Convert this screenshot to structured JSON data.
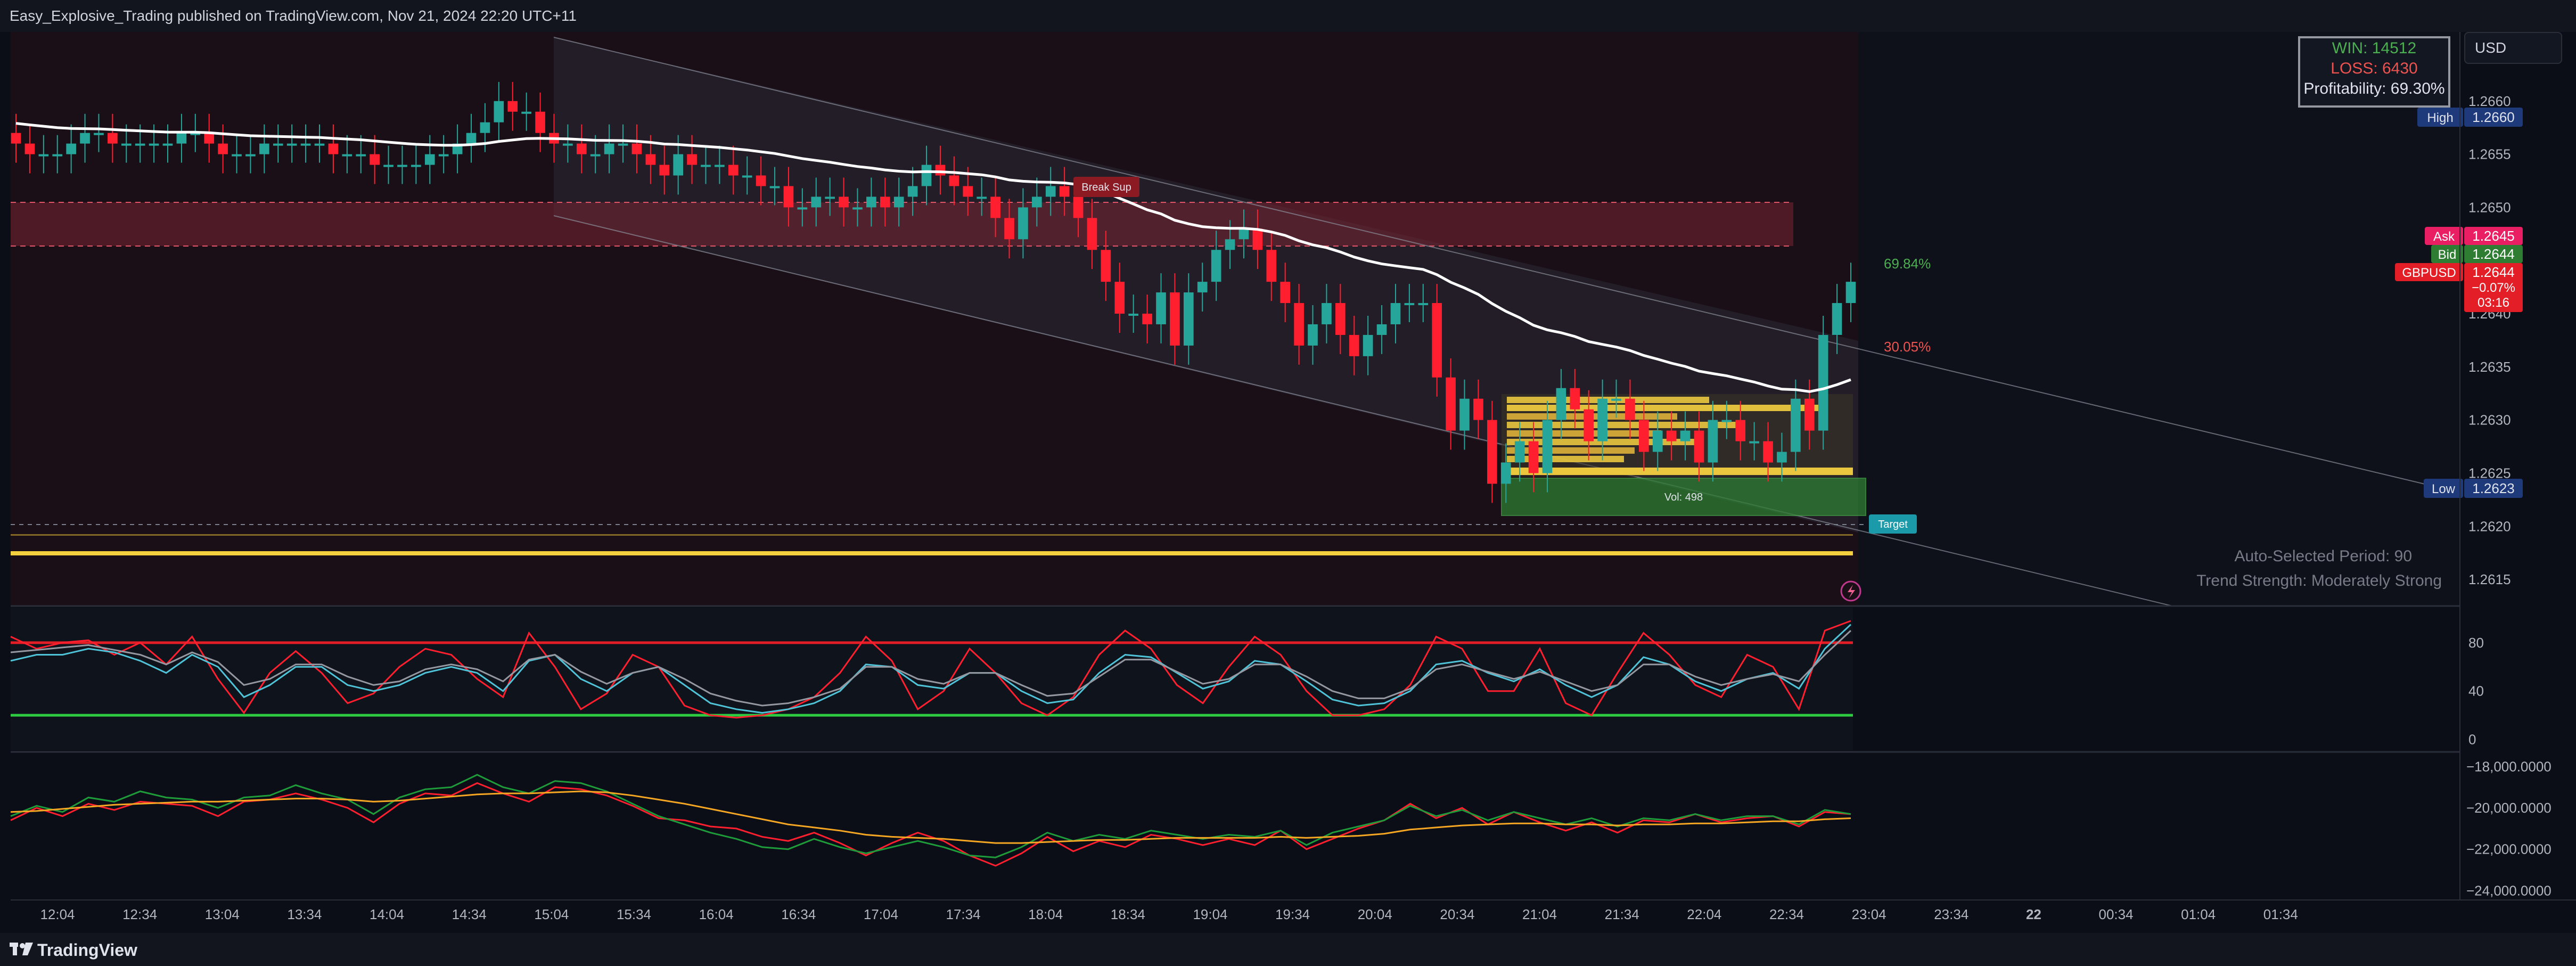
{
  "header": {
    "publisher_line": "Easy_Explosive_Trading published on TradingView.com, Nov 21, 2024 22:20 UTC+11"
  },
  "footer": {
    "brand": "TradingView"
  },
  "currency_button": "USD",
  "stats_box": {
    "win": "WIN: 14512",
    "loss": "LOSS: 6430",
    "profitability": "Profitability: 69.30%"
  },
  "colors": {
    "bull": "#26a69a",
    "bear": "#ff1f2e",
    "ema": "#ffffff",
    "zone": "#7a2533",
    "poc": "#f4d03f",
    "target": "#1b9aaa"
  },
  "chart_data": [
    {
      "type": "candlestick",
      "symbol": "GBPUSD",
      "x_tick_labels": [
        "12:04",
        "12:34",
        "13:04",
        "13:34",
        "14:04",
        "14:34",
        "15:04",
        "15:34",
        "16:04",
        "16:34",
        "17:04",
        "17:34",
        "18:04",
        "18:34",
        "19:04",
        "19:34",
        "20:04",
        "20:34",
        "21:04",
        "21:34",
        "22:04",
        "22:34",
        "23:04",
        "23:34",
        "22",
        "00:34",
        "01:04",
        "01:34"
      ],
      "y_tick_labels": [
        "1.2615",
        "1.2620",
        "1.2625",
        "1.2630",
        "1.2635",
        "1.2640",
        "1.2645",
        "1.2650",
        "1.2655",
        "1.2660"
      ],
      "ylim": [
        1.26125,
        1.26665
      ],
      "price_labels": {
        "high_label": "High",
        "high": "1.2660",
        "ask_label": "Ask",
        "ask": "1.2645",
        "bid_label": "Bid",
        "bid": "1.2644",
        "last": "1.2644",
        "change": "−0.07%",
        "countdown": "03:16",
        "low_label": "Low",
        "low": "1.2623"
      },
      "annotations": {
        "upper_pct": "69.84%",
        "lower_pct": "30.05%",
        "volume": "Vol: 498",
        "target": "Target",
        "break_label": "Break Sup",
        "period": "Auto-Selected Period: 90",
        "trend": "Trend Strength: Moderately Strong"
      },
      "candles_close": [
        1.2656,
        1.2655,
        1.2655,
        1.2655,
        1.2656,
        1.2657,
        1.2657,
        1.2656,
        1.2656,
        1.2656,
        1.2656,
        1.2656,
        1.2657,
        1.2657,
        1.2656,
        1.2655,
        1.2655,
        1.2655,
        1.2656,
        1.2656,
        1.2656,
        1.2656,
        1.2656,
        1.2655,
        1.2655,
        1.2655,
        1.2654,
        1.2654,
        1.2654,
        1.2654,
        1.2655,
        1.2655,
        1.2656,
        1.2657,
        1.2658,
        1.266,
        1.2659,
        1.2659,
        1.2657,
        1.2656,
        1.2656,
        1.2655,
        1.2655,
        1.2656,
        1.2656,
        1.2655,
        1.2654,
        1.2653,
        1.2655,
        1.2654,
        1.2654,
        1.2654,
        1.2653,
        1.2653,
        1.2652,
        1.2652,
        1.265,
        1.265,
        1.2651,
        1.2651,
        1.265,
        1.265,
        1.2651,
        1.265,
        1.2651,
        1.2652,
        1.2654,
        1.2653,
        1.2652,
        1.2651,
        1.2651,
        1.2649,
        1.2647,
        1.265,
        1.2651,
        1.2652,
        1.2651,
        1.2649,
        1.2646,
        1.2643,
        1.264,
        1.264,
        1.2639,
        1.2642,
        1.2637,
        1.2642,
        1.2643,
        1.2646,
        1.2647,
        1.2648,
        1.2646,
        1.2643,
        1.2641,
        1.2637,
        1.2639,
        1.2641,
        1.2638,
        1.2636,
        1.2638,
        1.2639,
        1.2641,
        1.2641,
        1.2641,
        1.2634,
        1.2629,
        1.2632,
        1.263,
        1.2624,
        1.2626,
        1.2628,
        1.2625,
        1.263,
        1.2633,
        1.2631,
        1.2628,
        1.2632,
        1.2632,
        1.263,
        1.2627,
        1.2629,
        1.2628,
        1.2629,
        1.2626,
        1.263,
        1.263,
        1.2628,
        1.2628,
        1.2626,
        1.2627,
        1.2632,
        1.2629,
        1.2638,
        1.2641,
        1.2643
      ]
    },
    {
      "type": "line",
      "name": "oscillator",
      "y_tick_labels": [
        "80",
        "40",
        "0"
      ],
      "ylim": [
        -5,
        105
      ],
      "levels": [
        80,
        20
      ],
      "series": [
        {
          "color": "#ff1f2e",
          "values": [
            85,
            75,
            80,
            82,
            70,
            80,
            62,
            85,
            50,
            22,
            55,
            73,
            55,
            30,
            38,
            60,
            75,
            70,
            50,
            35,
            88,
            60,
            25,
            38,
            70,
            60,
            28,
            20,
            18,
            20,
            25,
            35,
            55,
            85,
            65,
            25,
            40,
            75,
            55,
            30,
            20,
            35,
            70,
            90,
            75,
            45,
            30,
            60,
            85,
            70,
            40,
            20,
            20,
            25,
            45,
            85,
            75,
            40,
            40,
            75,
            30,
            20,
            55,
            88,
            70,
            45,
            35,
            70,
            60,
            25,
            90,
            98
          ]
        },
        {
          "color": "#4fc3d7",
          "values": [
            65,
            70,
            70,
            75,
            72,
            65,
            55,
            70,
            60,
            35,
            45,
            60,
            60,
            45,
            40,
            45,
            55,
            60,
            55,
            40,
            65,
            70,
            50,
            40,
            55,
            60,
            45,
            30,
            25,
            22,
            25,
            30,
            40,
            62,
            60,
            45,
            42,
            55,
            55,
            40,
            30,
            33,
            55,
            70,
            68,
            55,
            42,
            48,
            65,
            62,
            48,
            33,
            28,
            30,
            40,
            62,
            65,
            55,
            48,
            58,
            45,
            35,
            45,
            68,
            62,
            48,
            40,
            50,
            55,
            42,
            75,
            95
          ]
        },
        {
          "color": "#9598a1",
          "values": [
            72,
            74,
            76,
            78,
            74,
            70,
            62,
            72,
            64,
            45,
            50,
            62,
            62,
            52,
            45,
            48,
            58,
            62,
            58,
            48,
            66,
            70,
            56,
            46,
            55,
            60,
            50,
            38,
            32,
            28,
            30,
            35,
            42,
            60,
            60,
            50,
            46,
            55,
            55,
            45,
            36,
            38,
            52,
            66,
            66,
            56,
            46,
            50,
            62,
            62,
            52,
            40,
            34,
            34,
            42,
            58,
            62,
            56,
            50,
            56,
            48,
            40,
            45,
            62,
            62,
            52,
            45,
            50,
            54,
            48,
            70,
            90
          ]
        }
      ]
    },
    {
      "type": "line",
      "name": "lower indicator",
      "y_tick_labels": [
        "−18,000.0000",
        "−20,000.0000",
        "−22,000.0000",
        "−24,000.0000"
      ],
      "ylim": [
        -24300,
        -17500
      ],
      "series": [
        {
          "color": "#ff1f2e",
          "values": [
            -20600,
            -20000,
            -20400,
            -19800,
            -20100,
            -19700,
            -19800,
            -19900,
            -20400,
            -19700,
            -19600,
            -19300,
            -19600,
            -20000,
            -20700,
            -19800,
            -19300,
            -19400,
            -18800,
            -19300,
            -19700,
            -19000,
            -19100,
            -19400,
            -19900,
            -20500,
            -20600,
            -20900,
            -21000,
            -21400,
            -21600,
            -21200,
            -21700,
            -22300,
            -21700,
            -21200,
            -21600,
            -22300,
            -22800,
            -22200,
            -21400,
            -22100,
            -21600,
            -21900,
            -21300,
            -21500,
            -21800,
            -21500,
            -21800,
            -21100,
            -22000,
            -21500,
            -21000,
            -20600,
            -19800,
            -20500,
            -20000,
            -20800,
            -20200,
            -20700,
            -21100,
            -20700,
            -21200,
            -20600,
            -20700,
            -20300,
            -20700,
            -20500,
            -20400,
            -20900,
            -20200,
            -20300
          ]
        },
        {
          "color": "#1e9c3a",
          "values": [
            -20400,
            -19900,
            -20200,
            -19500,
            -19700,
            -19200,
            -19500,
            -19600,
            -20000,
            -19500,
            -19400,
            -18900,
            -19300,
            -19600,
            -20300,
            -19500,
            -19100,
            -19000,
            -18400,
            -19000,
            -19300,
            -18700,
            -18800,
            -19200,
            -19800,
            -20400,
            -20800,
            -21200,
            -21500,
            -21900,
            -22000,
            -21500,
            -21900,
            -22200,
            -21900,
            -21600,
            -21900,
            -22300,
            -22400,
            -21900,
            -21200,
            -21600,
            -21300,
            -21500,
            -21100,
            -21300,
            -21500,
            -21300,
            -21400,
            -21100,
            -21800,
            -21200,
            -20900,
            -20600,
            -19900,
            -20400,
            -20100,
            -20600,
            -20200,
            -20500,
            -20800,
            -20500,
            -20900,
            -20500,
            -20600,
            -20300,
            -20600,
            -20400,
            -20400,
            -20800,
            -20100,
            -20300
          ]
        },
        {
          "color": "#f5a623",
          "values": [
            -20200,
            -20150,
            -20050,
            -19950,
            -19850,
            -19800,
            -19750,
            -19700,
            -19700,
            -19650,
            -19600,
            -19550,
            -19550,
            -19600,
            -19700,
            -19650,
            -19550,
            -19450,
            -19350,
            -19300,
            -19300,
            -19250,
            -19200,
            -19250,
            -19400,
            -19600,
            -19800,
            -20050,
            -20300,
            -20550,
            -20800,
            -20950,
            -21100,
            -21300,
            -21400,
            -21450,
            -21500,
            -21600,
            -21700,
            -21700,
            -21650,
            -21600,
            -21550,
            -21550,
            -21500,
            -21450,
            -21450,
            -21450,
            -21450,
            -21400,
            -21450,
            -21400,
            -21350,
            -21250,
            -21050,
            -20950,
            -20850,
            -20800,
            -20750,
            -20750,
            -20800,
            -20800,
            -20850,
            -20800,
            -20800,
            -20750,
            -20750,
            -20700,
            -20650,
            -20650,
            -20550,
            -20500
          ]
        }
      ]
    }
  ]
}
